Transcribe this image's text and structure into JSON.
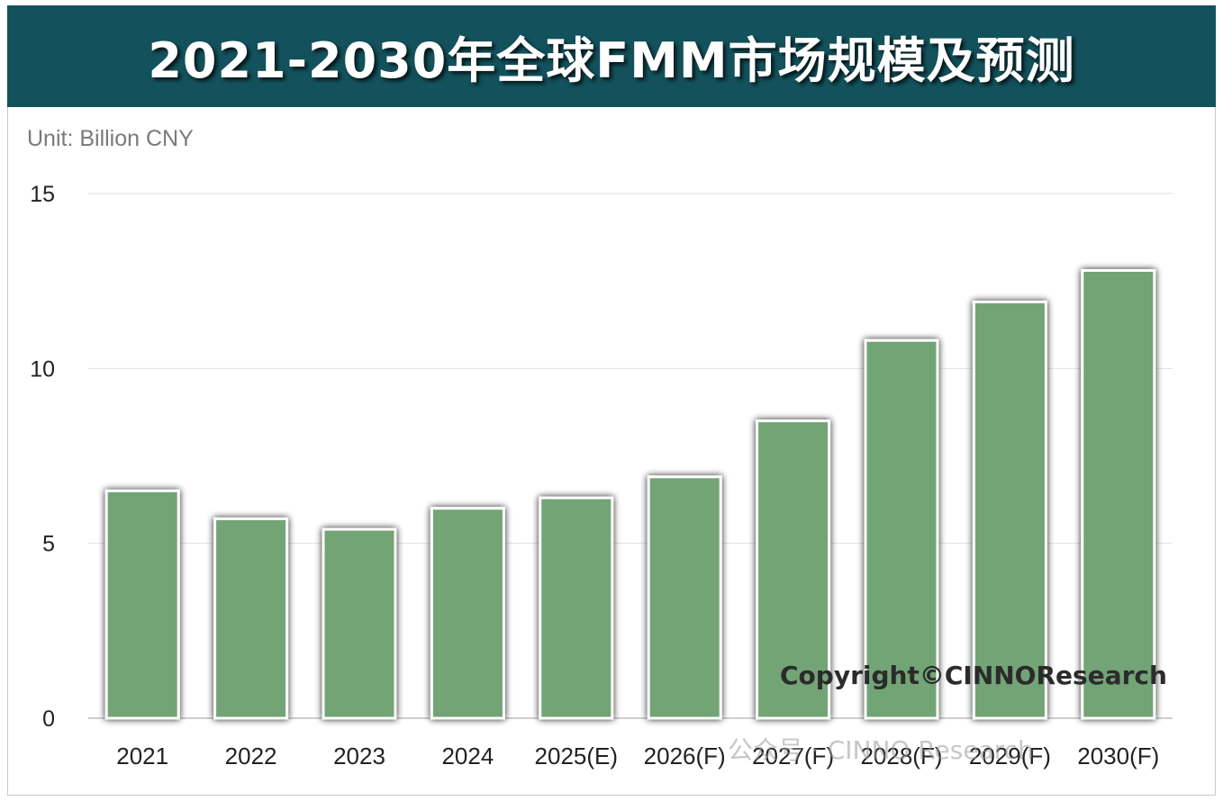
{
  "chart_data": {
    "type": "bar",
    "title": "2021-2030年全球FMM市场规模及预测",
    "unit_label": "Unit: Billion CNY",
    "categories": [
      "2021",
      "2022",
      "2023",
      "2024",
      "2025(E)",
      "2026(F)",
      "2027(F)",
      "2028(F)",
      "2029(F)",
      "2030(F)"
    ],
    "values": [
      6.5,
      5.7,
      5.4,
      6.0,
      6.3,
      6.9,
      8.5,
      10.8,
      11.9,
      12.8
    ],
    "ylim": [
      0,
      15
    ],
    "yticks": [
      0,
      5,
      10,
      15
    ],
    "grid": true,
    "legend": "none",
    "bar_color": "#72a476",
    "bar_border_color": "#ffffff",
    "annotation": "Copyright©CINNOResearch",
    "watermark": "公众号 · CINNO Research"
  }
}
